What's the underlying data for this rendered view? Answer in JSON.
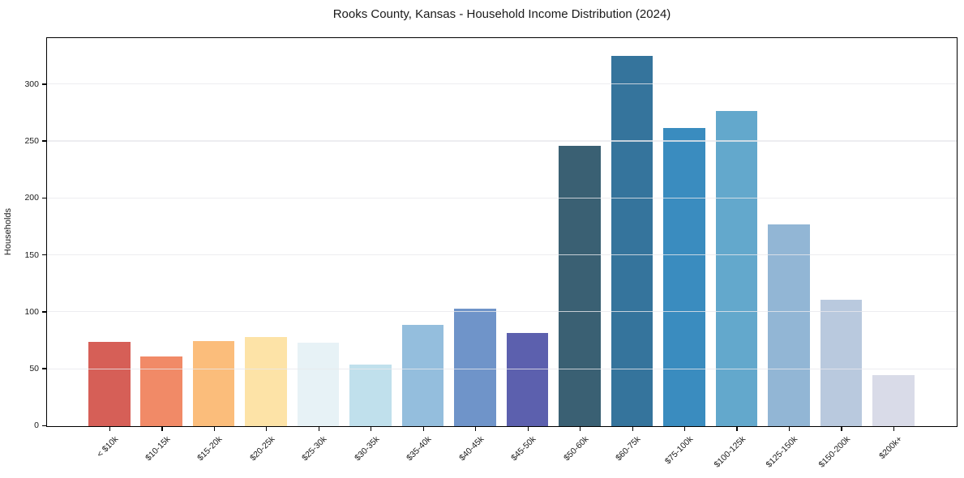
{
  "chart_data": {
    "type": "bar",
    "title": "Rooks County, Kansas - Household Income Distribution (2024)",
    "xlabel": "",
    "ylabel": "Households",
    "categories": [
      "< $10k",
      "$10-15k",
      "$15-20k",
      "$20-25k",
      "$25-30k",
      "$30-35k",
      "$35-40k",
      "$40-45k",
      "$45-50k",
      "$50-60k",
      "$60-75k",
      "$75-100k",
      "$100-125k",
      "$125-150k",
      "$150-200k",
      "$200k+"
    ],
    "values": [
      74,
      61,
      75,
      78,
      73,
      54,
      89,
      103,
      82,
      246,
      325,
      262,
      277,
      177,
      111,
      45
    ],
    "bar_colors": [
      "#d65f57",
      "#f18a67",
      "#fbbd7b",
      "#fde3a7",
      "#e7f2f6",
      "#c0e0ec",
      "#94bedd",
      "#6f94c9",
      "#5c60ae",
      "#3a6073",
      "#35749c",
      "#3a8cbf",
      "#63a8cc",
      "#92b6d5",
      "#b9c9de",
      "#d9dbe8"
    ],
    "ylim": [
      0,
      340
    ],
    "yticks": [
      0,
      50,
      100,
      150,
      200,
      250,
      300
    ],
    "grid": "horizontal",
    "legend": "none",
    "styling": {
      "grid_color_rgba": "rgba(232,232,236,0.8)",
      "spine_color": "#000000",
      "tick_color": "#000000",
      "text_color": "#1a1a1a",
      "background": "#ffffff"
    }
  }
}
